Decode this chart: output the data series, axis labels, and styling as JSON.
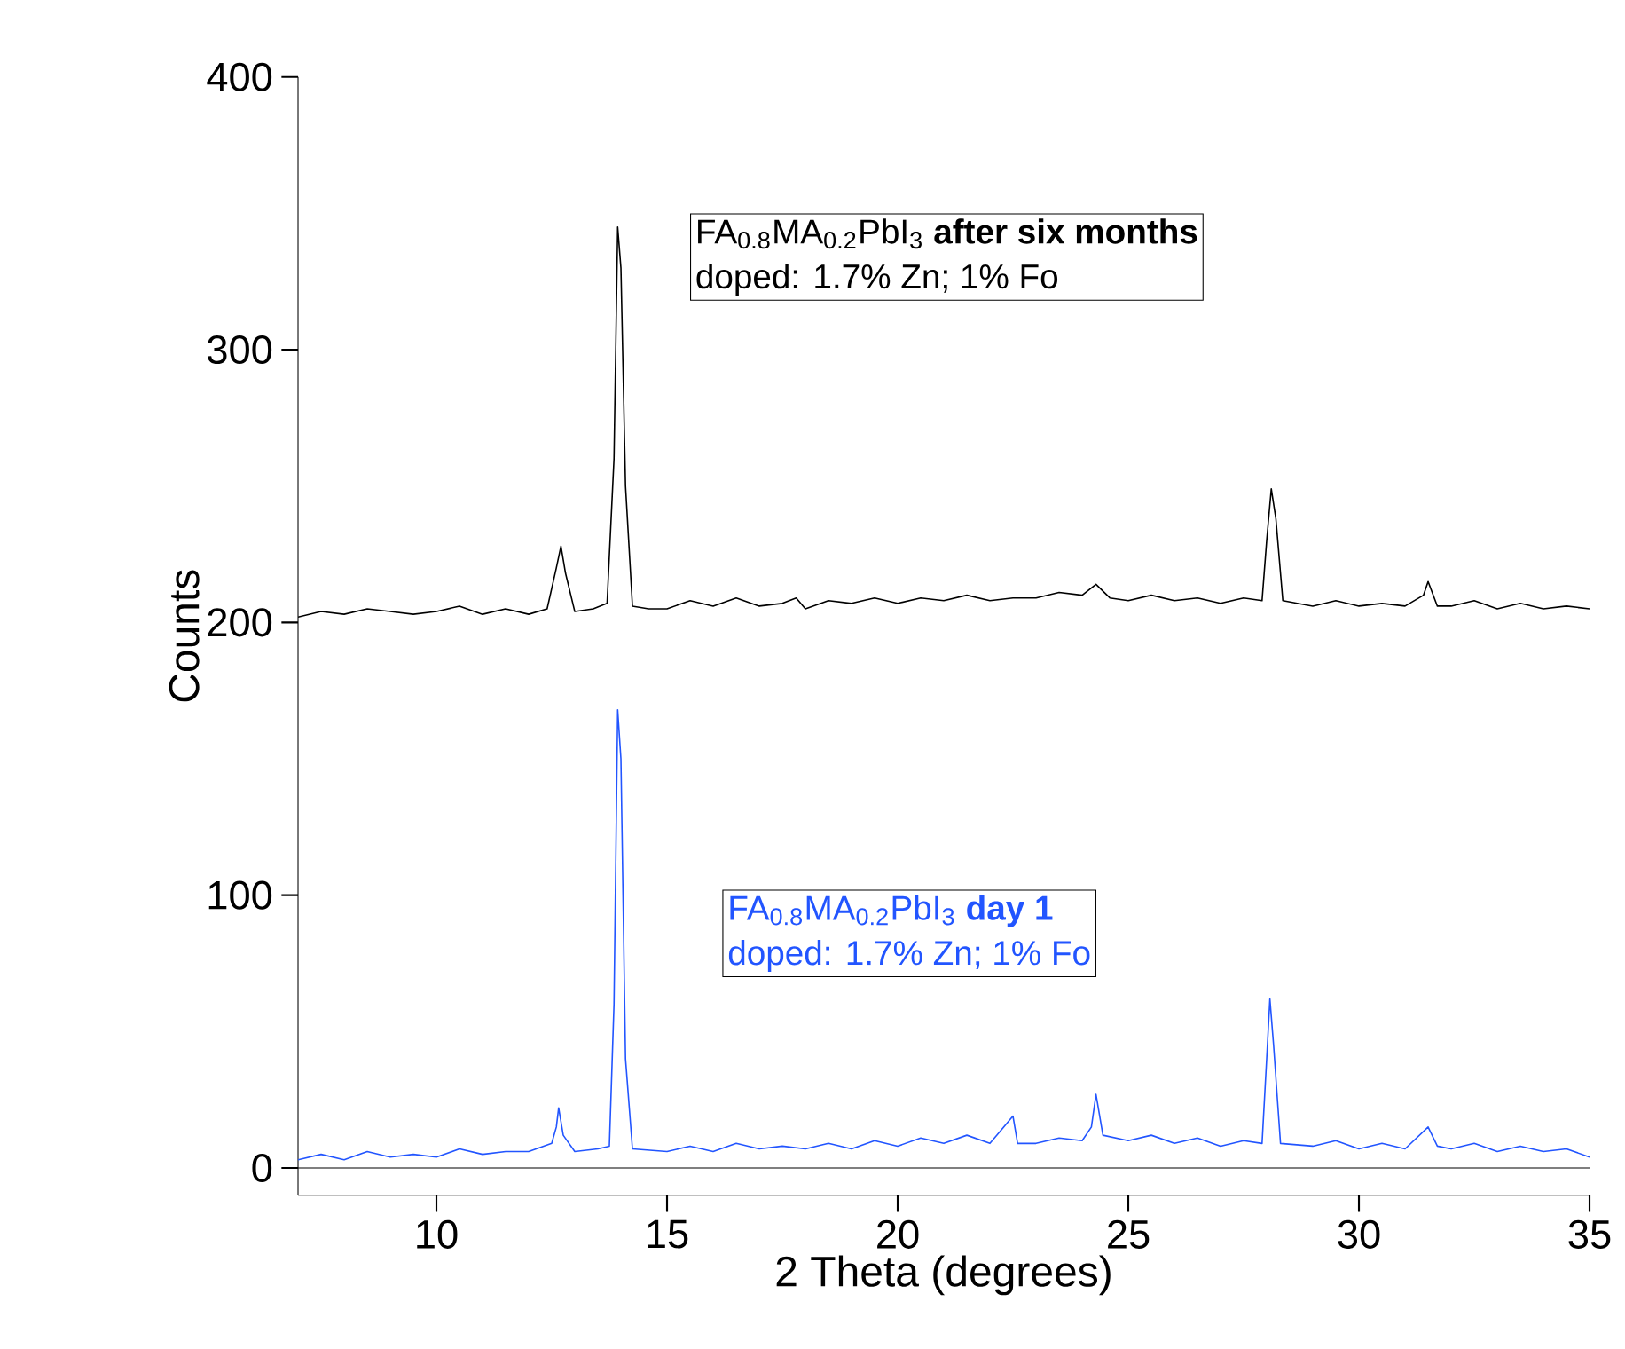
{
  "chart_data": {
    "type": "line",
    "xlabel": "2 Theta  (degrees)",
    "ylabel": "Counts",
    "xlim": [
      7,
      35
    ],
    "ylim": [
      -10,
      400
    ],
    "xticks": [
      10,
      15,
      20,
      25,
      30,
      35
    ],
    "yticks": [
      0,
      100,
      200,
      300,
      400
    ],
    "grid": false,
    "legend": false,
    "marker": "none",
    "line_style": "solid",
    "ref_lines": [
      {
        "axis": "y",
        "value": 0,
        "color": "#000000"
      }
    ],
    "annotations": [
      "doped: 1.7% Zn; 1% Fo",
      "doped: 1.7% Zn; 1% Fo"
    ],
    "series": [
      {
        "name": "FA$_{0.8}$MA$_{0.2}$PbI$_{3}$ **after six months**",
        "color": "#000000",
        "x": [
          7,
          7.5,
          8,
          8.5,
          9,
          9.5,
          10,
          10.5,
          11,
          11.5,
          12,
          12.4,
          12.6,
          12.7,
          12.8,
          13.0,
          13.4,
          13.7,
          13.85,
          13.93,
          14.0,
          14.1,
          14.25,
          14.6,
          15,
          15.5,
          16,
          16.5,
          17,
          17.5,
          17.8,
          18,
          18.5,
          19,
          19.5,
          20,
          20.5,
          21,
          21.5,
          22,
          22.5,
          23,
          23.5,
          24,
          24.3,
          24.6,
          25,
          25.5,
          26,
          26.5,
          27,
          27.5,
          27.9,
          28.0,
          28.1,
          28.2,
          28.35,
          29,
          29.5,
          30,
          30.5,
          31,
          31.4,
          31.5,
          31.7,
          32,
          32.5,
          33,
          33.5,
          34,
          34.5,
          35
        ],
        "values": [
          202,
          204,
          203,
          205,
          204,
          203,
          204,
          206,
          203,
          205,
          203,
          205,
          220,
          228,
          218,
          204,
          205,
          207,
          260,
          345,
          330,
          250,
          206,
          205,
          205,
          208,
          206,
          209,
          206,
          207,
          209,
          205,
          208,
          207,
          209,
          207,
          209,
          208,
          210,
          208,
          209,
          209,
          211,
          210,
          214,
          209,
          208,
          210,
          208,
          209,
          207,
          209,
          208,
          230,
          249,
          238,
          208,
          206,
          208,
          206,
          207,
          206,
          210,
          215,
          206,
          206,
          208,
          205,
          207,
          205,
          206,
          205
        ]
      },
      {
        "name": "FA$_{0.8}$MA$_{0.2}$PbI$_{3}$ **day 1**",
        "color": "#2255ff",
        "x": [
          7,
          7.5,
          8,
          8.5,
          9,
          9.5,
          10,
          10.5,
          11,
          11.5,
          12,
          12.5,
          12.6,
          12.65,
          12.75,
          13.0,
          13.5,
          13.75,
          13.85,
          13.93,
          14.0,
          14.1,
          14.25,
          15,
          15.5,
          16,
          16.5,
          17,
          17.5,
          18,
          18.5,
          19,
          19.5,
          20,
          20.5,
          21,
          21.5,
          22,
          22.5,
          22.6,
          23,
          23.5,
          24,
          24.2,
          24.3,
          24.45,
          25,
          25.5,
          26,
          26.5,
          27,
          27.5,
          27.9,
          28.0,
          28.07,
          28.15,
          28.3,
          29,
          29.5,
          30,
          30.5,
          31,
          31.5,
          31.7,
          32,
          32.5,
          33,
          33.5,
          34,
          34.5,
          35
        ],
        "values": [
          3,
          5,
          3,
          6,
          4,
          5,
          4,
          7,
          5,
          6,
          6,
          9,
          15,
          22,
          12,
          6,
          7,
          8,
          60,
          168,
          150,
          40,
          7,
          6,
          8,
          6,
          9,
          7,
          8,
          7,
          9,
          7,
          10,
          8,
          11,
          9,
          12,
          9,
          19,
          9,
          9,
          11,
          10,
          15,
          27,
          12,
          10,
          12,
          9,
          11,
          8,
          10,
          9,
          40,
          62,
          45,
          9,
          8,
          10,
          7,
          9,
          7,
          15,
          8,
          7,
          9,
          6,
          8,
          6,
          7,
          4
        ]
      }
    ]
  }
}
